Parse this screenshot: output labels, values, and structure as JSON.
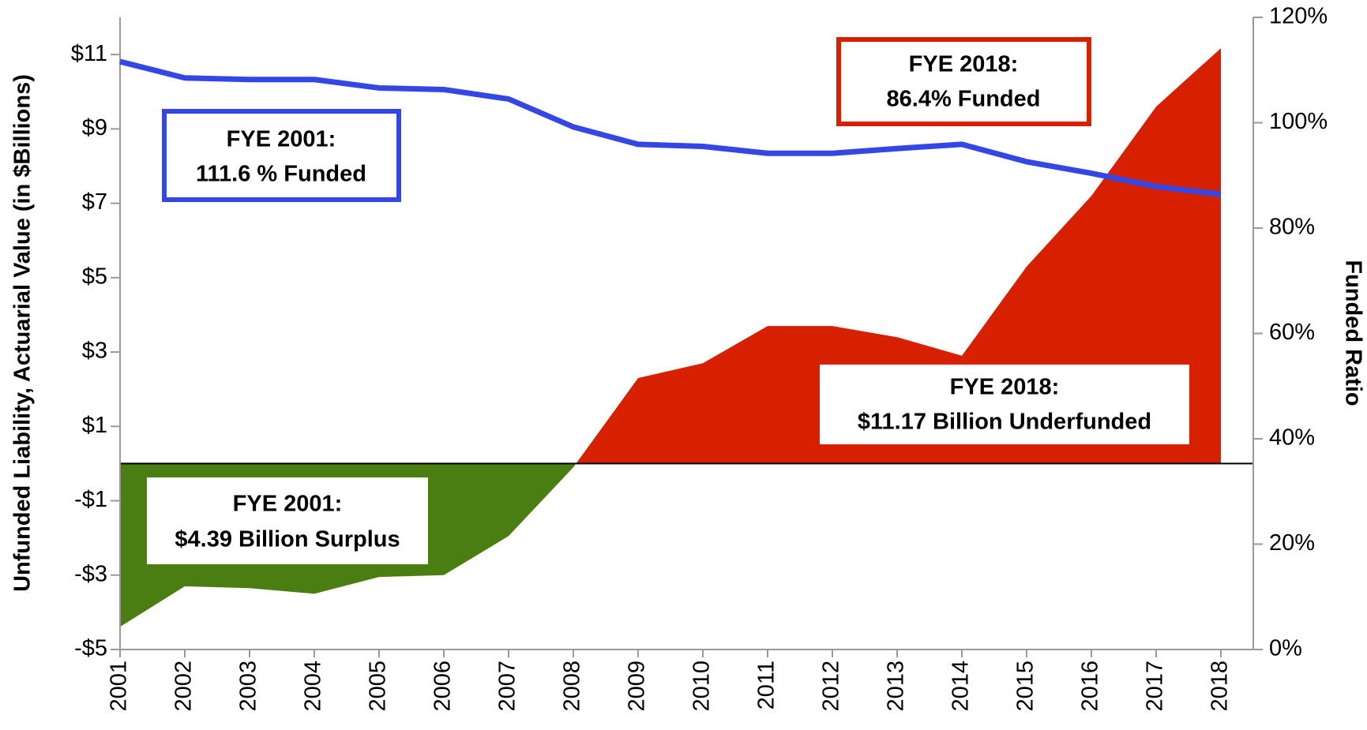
{
  "chart_data": {
    "type": "line",
    "x": [
      2001,
      2002,
      2003,
      2004,
      2005,
      2006,
      2007,
      2008,
      2009,
      2010,
      2011,
      2012,
      2013,
      2014,
      2015,
      2016,
      2017,
      2018
    ],
    "xlim": [
      2001,
      2018.5
    ],
    "xticks": [
      2001,
      2002,
      2003,
      2004,
      2005,
      2006,
      2007,
      2008,
      2009,
      2010,
      2011,
      2012,
      2013,
      2014,
      2015,
      2016,
      2017,
      2018
    ],
    "ylabel": "Unfunded Liability, Actuarial Value (in $Billions)",
    "y2label": "Funded Ratio",
    "ylim": [
      -5,
      12
    ],
    "yticks": [
      {
        "value": -5,
        "label": "-$5"
      },
      {
        "value": -3,
        "label": "-$3"
      },
      {
        "value": -1,
        "label": "-$1"
      },
      {
        "value": 1,
        "label": "$1"
      },
      {
        "value": 3,
        "label": "$3"
      },
      {
        "value": 5,
        "label": "$5"
      },
      {
        "value": 7,
        "label": "$7"
      },
      {
        "value": 9,
        "label": "$9"
      },
      {
        "value": 11,
        "label": "$11"
      }
    ],
    "y2lim": [
      0,
      120
    ],
    "y2ticks": [
      {
        "value": 0,
        "label": "0%"
      },
      {
        "value": 20,
        "label": "20%"
      },
      {
        "value": 40,
        "label": "40%"
      },
      {
        "value": 60,
        "label": "60%"
      },
      {
        "value": 80,
        "label": "80%"
      },
      {
        "value": 100,
        "label": "100%"
      },
      {
        "value": 120,
        "label": "120%"
      }
    ],
    "series": [
      {
        "type": "area",
        "color": "#d62000",
        "negative_color": "#4a7e12",
        "values": [
          -4.39,
          -3.3,
          -3.35,
          -3.5,
          -3.05,
          -3.0,
          -1.95,
          -0.1,
          2.3,
          2.7,
          3.7,
          3.7,
          3.4,
          2.9,
          5.3,
          7.2,
          9.6,
          11.17
        ]
      },
      {
        "type": "line",
        "axis": "y2",
        "color": "#3346e6",
        "values": [
          111.6,
          108.5,
          108.2,
          108.2,
          106.6,
          106.3,
          104.5,
          99.2,
          95.9,
          95.5,
          94.2,
          94.2,
          95.1,
          95.9,
          92.6,
          90.4,
          87.9,
          86.4
        ]
      }
    ],
    "annotations": [
      [
        "FYE 2001:",
        "111.6 % Funded"
      ],
      [
        "FYE 2018:",
        "86.4% Funded"
      ],
      [
        "FYE 2018:",
        "$11.17 Billion  Underfunded"
      ],
      [
        "FYE 2001:",
        "$4.39 Billion Surplus"
      ]
    ]
  }
}
